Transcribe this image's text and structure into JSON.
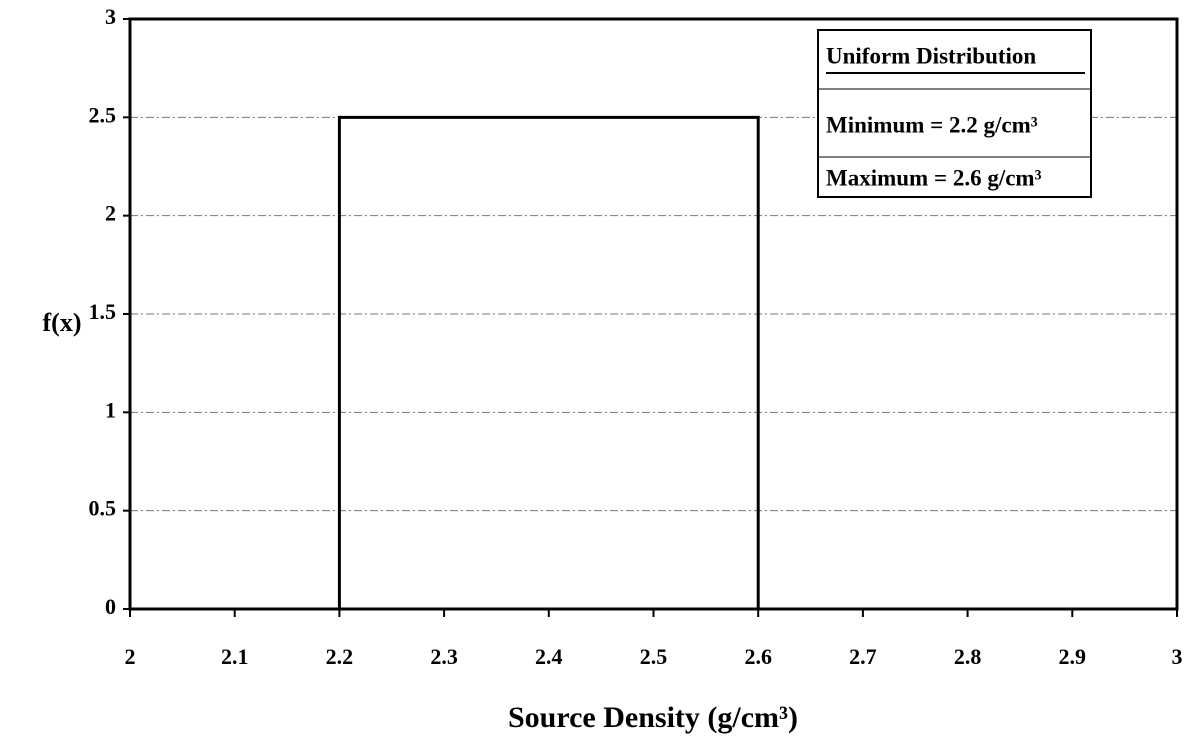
{
  "chart_data": {
    "type": "line",
    "xlabel": "Source Density (g/cm³)",
    "ylabel": "f(x)",
    "annotations": [
      "Uniform Distribution",
      "Minimum = 2.2 g/cm³",
      "Maximum = 2.6 g/cm³"
    ],
    "x": [
      2,
      2.2,
      2.2,
      2.6,
      2.6,
      3
    ],
    "values": [
      0,
      0,
      2.5,
      2.5,
      0,
      0
    ],
    "color": "#000000",
    "xlim": [
      2,
      3
    ],
    "xticks": [
      2,
      2.1,
      2.2,
      2.3,
      2.4,
      2.5,
      2.6,
      2.7,
      2.8,
      2.9,
      3
    ],
    "ylim": [
      0,
      3
    ],
    "yticks": [
      0,
      0.5,
      1,
      1.5,
      2,
      2.5,
      3
    ],
    "grid": true
  }
}
